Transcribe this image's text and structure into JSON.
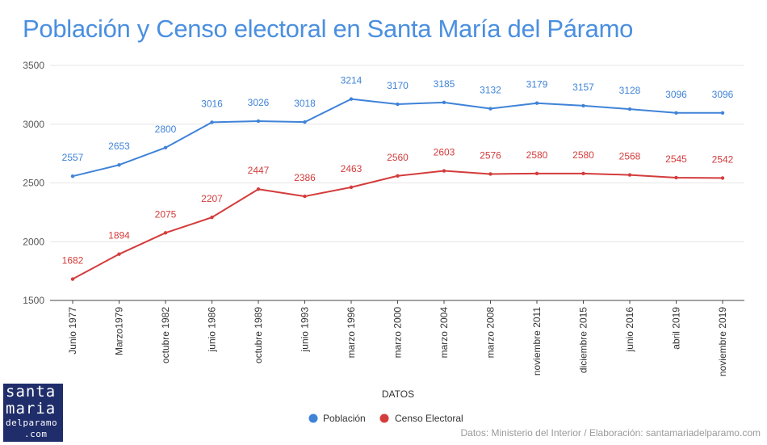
{
  "title": "Población y Censo electoral en Santa María del Páramo",
  "source": "Datos: Ministerio del Interior / Elaboración: santamariadelparamo.com",
  "logo": {
    "line1": "santa",
    "line2": "maria",
    "line3": "delparamo",
    "line4": ".com"
  },
  "colors": {
    "poblacion": "#3f83d8",
    "censo": "#d43c3c",
    "title": "#4a8fe0",
    "grid": "#e6e6e6"
  },
  "chart_data": {
    "type": "line",
    "title": "Población y Censo electoral en Santa María del Páramo",
    "xlabel": "DATOS",
    "ylabel": "",
    "categories": [
      "Junio 1977",
      "Marzo1979",
      "octubre 1982",
      "junio 1986",
      "octubre 1989",
      "junio 1993",
      "marzo 1996",
      "marzo 2000",
      "marzo 2004",
      "marzo 2008",
      "noviembre 2011",
      "diciembre 2015",
      "junio 2016",
      "abril 2019",
      "noviembre 2019"
    ],
    "series": [
      {
        "name": "Población",
        "color": "#3f83d8",
        "values": [
          2557,
          2653,
          2800,
          3016,
          3026,
          3018,
          3214,
          3170,
          3185,
          3132,
          3179,
          3157,
          3128,
          3096,
          3096
        ]
      },
      {
        "name": "Censo Electoral",
        "color": "#d43c3c",
        "values": [
          1682,
          1894,
          2075,
          2207,
          2447,
          2386,
          2463,
          2560,
          2603,
          2576,
          2580,
          2580,
          2568,
          2545,
          2542
        ]
      }
    ],
    "ylim": [
      1500,
      3500
    ],
    "yticks": [
      1500,
      2000,
      2500,
      3000,
      3500
    ],
    "grid": true,
    "legend_position": "bottom"
  }
}
